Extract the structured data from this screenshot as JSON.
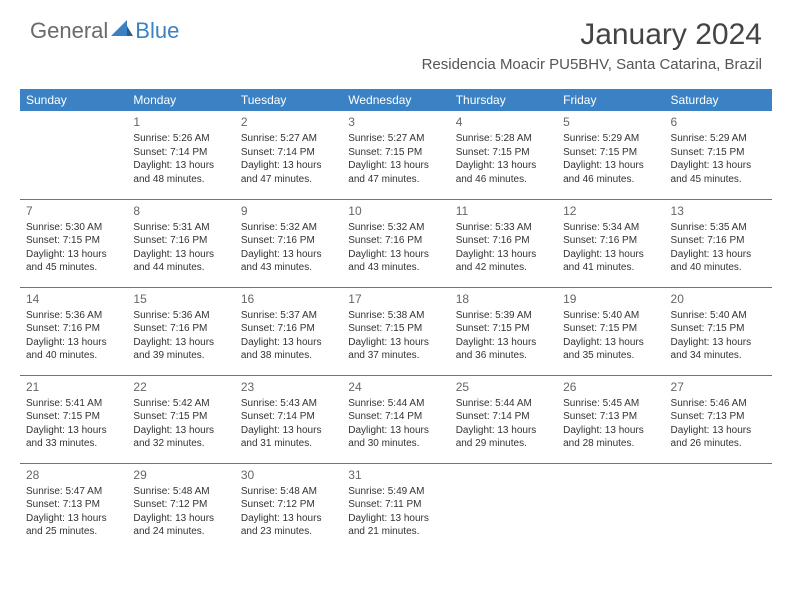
{
  "logo": {
    "text1": "General",
    "text2": "Blue"
  },
  "title": "January 2024",
  "location": "Residencia Moacir PU5BHV, Santa Catarina, Brazil",
  "colors": {
    "header_bg": "#3b82c4",
    "header_text": "#ffffff",
    "border": "#3b82c4",
    "daynum": "#666666",
    "body_text": "#333333",
    "logo_gray": "#6a6a6a",
    "logo_blue": "#3b82c4"
  },
  "day_headers": [
    "Sunday",
    "Monday",
    "Tuesday",
    "Wednesday",
    "Thursday",
    "Friday",
    "Saturday"
  ],
  "weeks": [
    [
      null,
      {
        "n": "1",
        "sr": "5:26 AM",
        "ss": "7:14 PM",
        "dl": "13 hours and 48 minutes."
      },
      {
        "n": "2",
        "sr": "5:27 AM",
        "ss": "7:14 PM",
        "dl": "13 hours and 47 minutes."
      },
      {
        "n": "3",
        "sr": "5:27 AM",
        "ss": "7:15 PM",
        "dl": "13 hours and 47 minutes."
      },
      {
        "n": "4",
        "sr": "5:28 AM",
        "ss": "7:15 PM",
        "dl": "13 hours and 46 minutes."
      },
      {
        "n": "5",
        "sr": "5:29 AM",
        "ss": "7:15 PM",
        "dl": "13 hours and 46 minutes."
      },
      {
        "n": "6",
        "sr": "5:29 AM",
        "ss": "7:15 PM",
        "dl": "13 hours and 45 minutes."
      }
    ],
    [
      {
        "n": "7",
        "sr": "5:30 AM",
        "ss": "7:15 PM",
        "dl": "13 hours and 45 minutes."
      },
      {
        "n": "8",
        "sr": "5:31 AM",
        "ss": "7:16 PM",
        "dl": "13 hours and 44 minutes."
      },
      {
        "n": "9",
        "sr": "5:32 AM",
        "ss": "7:16 PM",
        "dl": "13 hours and 43 minutes."
      },
      {
        "n": "10",
        "sr": "5:32 AM",
        "ss": "7:16 PM",
        "dl": "13 hours and 43 minutes."
      },
      {
        "n": "11",
        "sr": "5:33 AM",
        "ss": "7:16 PM",
        "dl": "13 hours and 42 minutes."
      },
      {
        "n": "12",
        "sr": "5:34 AM",
        "ss": "7:16 PM",
        "dl": "13 hours and 41 minutes."
      },
      {
        "n": "13",
        "sr": "5:35 AM",
        "ss": "7:16 PM",
        "dl": "13 hours and 40 minutes."
      }
    ],
    [
      {
        "n": "14",
        "sr": "5:36 AM",
        "ss": "7:16 PM",
        "dl": "13 hours and 40 minutes."
      },
      {
        "n": "15",
        "sr": "5:36 AM",
        "ss": "7:16 PM",
        "dl": "13 hours and 39 minutes."
      },
      {
        "n": "16",
        "sr": "5:37 AM",
        "ss": "7:16 PM",
        "dl": "13 hours and 38 minutes."
      },
      {
        "n": "17",
        "sr": "5:38 AM",
        "ss": "7:15 PM",
        "dl": "13 hours and 37 minutes."
      },
      {
        "n": "18",
        "sr": "5:39 AM",
        "ss": "7:15 PM",
        "dl": "13 hours and 36 minutes."
      },
      {
        "n": "19",
        "sr": "5:40 AM",
        "ss": "7:15 PM",
        "dl": "13 hours and 35 minutes."
      },
      {
        "n": "20",
        "sr": "5:40 AM",
        "ss": "7:15 PM",
        "dl": "13 hours and 34 minutes."
      }
    ],
    [
      {
        "n": "21",
        "sr": "5:41 AM",
        "ss": "7:15 PM",
        "dl": "13 hours and 33 minutes."
      },
      {
        "n": "22",
        "sr": "5:42 AM",
        "ss": "7:15 PM",
        "dl": "13 hours and 32 minutes."
      },
      {
        "n": "23",
        "sr": "5:43 AM",
        "ss": "7:14 PM",
        "dl": "13 hours and 31 minutes."
      },
      {
        "n": "24",
        "sr": "5:44 AM",
        "ss": "7:14 PM",
        "dl": "13 hours and 30 minutes."
      },
      {
        "n": "25",
        "sr": "5:44 AM",
        "ss": "7:14 PM",
        "dl": "13 hours and 29 minutes."
      },
      {
        "n": "26",
        "sr": "5:45 AM",
        "ss": "7:13 PM",
        "dl": "13 hours and 28 minutes."
      },
      {
        "n": "27",
        "sr": "5:46 AM",
        "ss": "7:13 PM",
        "dl": "13 hours and 26 minutes."
      }
    ],
    [
      {
        "n": "28",
        "sr": "5:47 AM",
        "ss": "7:13 PM",
        "dl": "13 hours and 25 minutes."
      },
      {
        "n": "29",
        "sr": "5:48 AM",
        "ss": "7:12 PM",
        "dl": "13 hours and 24 minutes."
      },
      {
        "n": "30",
        "sr": "5:48 AM",
        "ss": "7:12 PM",
        "dl": "13 hours and 23 minutes."
      },
      {
        "n": "31",
        "sr": "5:49 AM",
        "ss": "7:11 PM",
        "dl": "13 hours and 21 minutes."
      },
      null,
      null,
      null
    ]
  ],
  "labels": {
    "sunrise": "Sunrise:",
    "sunset": "Sunset:",
    "daylight": "Daylight:"
  }
}
